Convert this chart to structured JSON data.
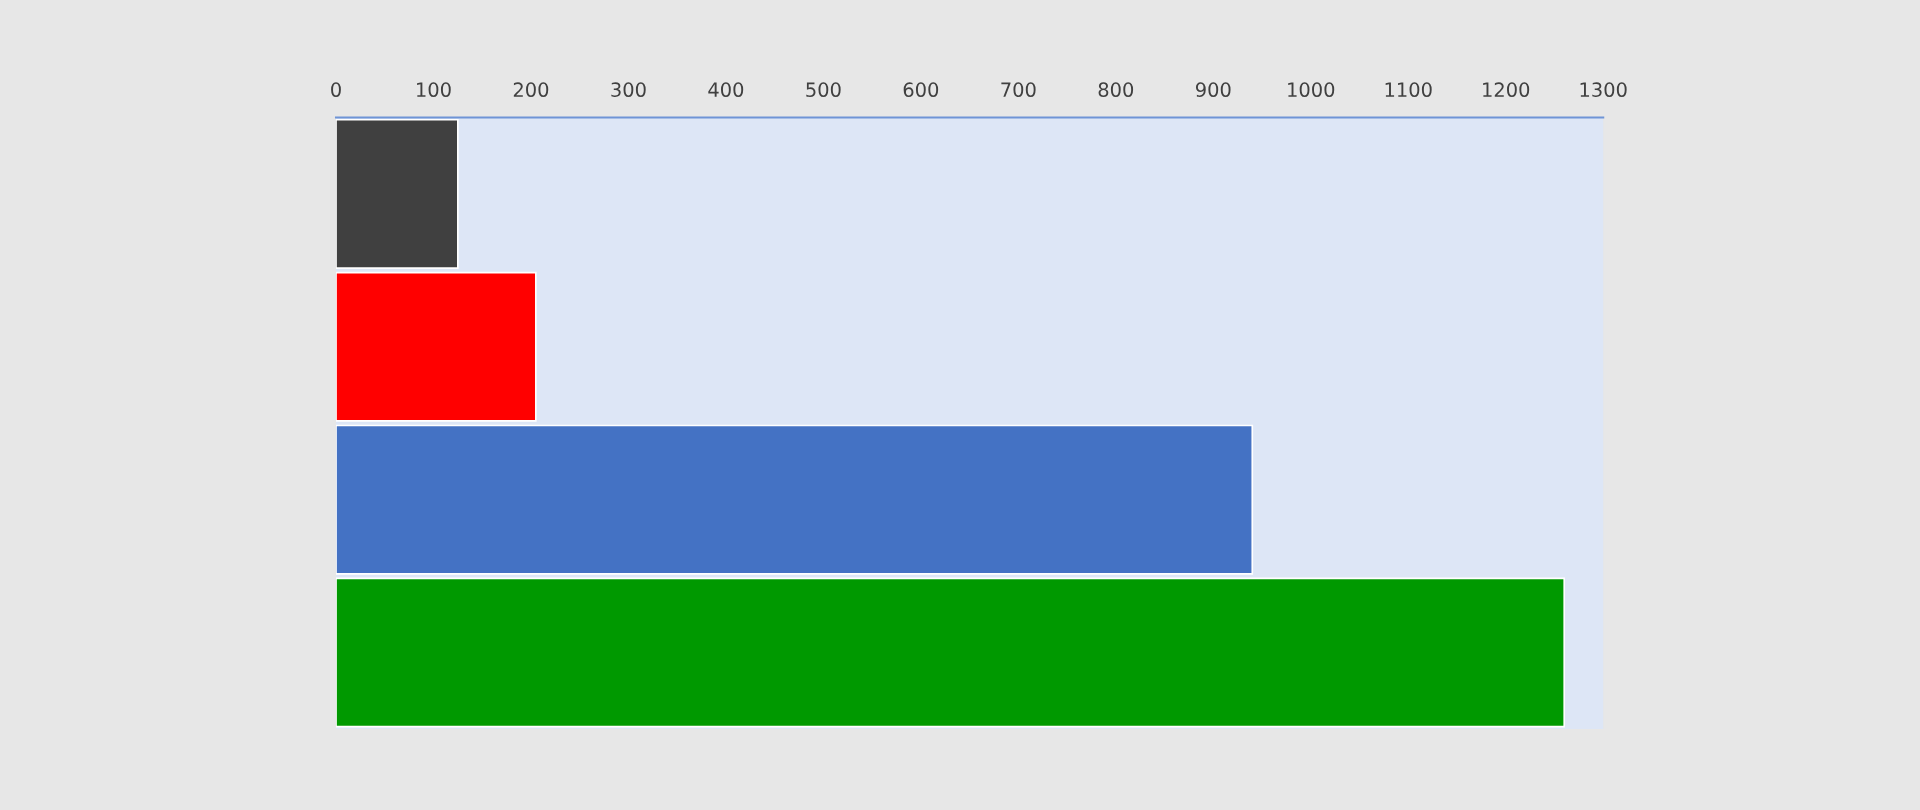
{
  "chart_data": {
    "type": "bar",
    "orientation": "horizontal",
    "categories": [
      null,
      null,
      null,
      null
    ],
    "values": [
      125,
      205,
      940,
      1260
    ],
    "colors": [
      "#404040",
      "#ff0000",
      "#4472c4",
      "#009900"
    ],
    "xlim": [
      0,
      1300
    ],
    "xticks": [
      0,
      100,
      200,
      300,
      400,
      500,
      600,
      700,
      800,
      900,
      1000,
      1100,
      1200,
      1300
    ],
    "tick_labels": "x"
  }
}
